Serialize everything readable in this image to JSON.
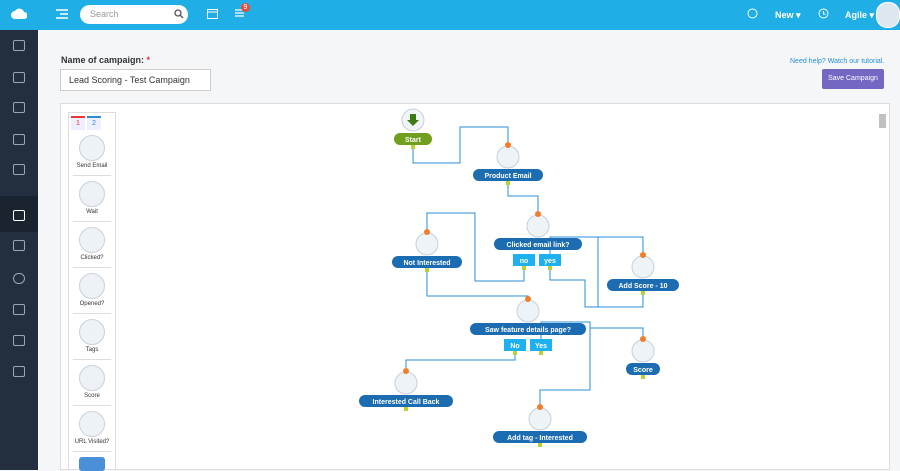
{
  "topbar": {
    "search_placeholder": "Search",
    "notification_count": 9,
    "new_menu": "New",
    "user_menu": "Agile"
  },
  "form": {
    "label": "Name of campaign:",
    "required_mark": "*",
    "campaign_name": "Lead Scoring - Test Campaign",
    "help_link": "Need help? Watch our tutorial.",
    "save_button": "Save Campaign"
  },
  "palette": {
    "tabs": [
      "1",
      "2"
    ],
    "items": [
      "Send Email",
      "Wait",
      "Clicked?",
      "Opened?",
      "Tags",
      "Score",
      "URL Visited?"
    ]
  },
  "workflow": {
    "nodes": [
      "Start",
      "Product Email",
      "Clicked email link?",
      "Not Interested",
      "Add Score - 10",
      "Saw feature details page?",
      "Score",
      "Interested Call Back",
      "Add tag - Interested"
    ],
    "branches": [
      "no",
      "yes",
      "No",
      "Yes"
    ]
  }
}
